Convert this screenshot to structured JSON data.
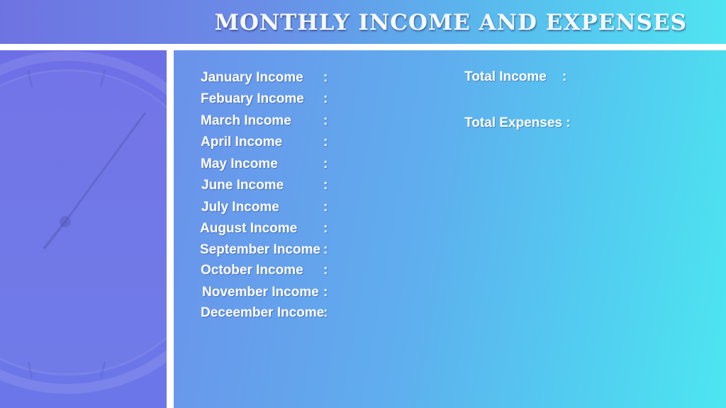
{
  "header": {
    "title": "MONTHLY INCOME AND EXPENSES"
  },
  "income_list": [
    {
      "label": "January Income",
      "separator": ":"
    },
    {
      "label": "Febuary Income",
      "separator": ":"
    },
    {
      "label": "March Income",
      "separator": ":"
    },
    {
      "label": "April Income",
      "separator": ":"
    },
    {
      "label": "May Income",
      "separator": ":"
    },
    {
      "label": "June Income",
      "separator": ":"
    },
    {
      "label": "July Income",
      "separator": ":"
    },
    {
      "label": "August Income",
      "separator": ":"
    },
    {
      "label": "September Income",
      "separator": ":"
    },
    {
      "label": "October Income",
      "separator": ":"
    },
    {
      "label": "November Income",
      "separator": ":"
    },
    {
      "label": "Deceember Income",
      "separator": ":"
    }
  ],
  "totals": {
    "total_income_label": "Total Income",
    "total_income_separator": ":",
    "total_expenses_label": "Total Expenses :"
  }
}
